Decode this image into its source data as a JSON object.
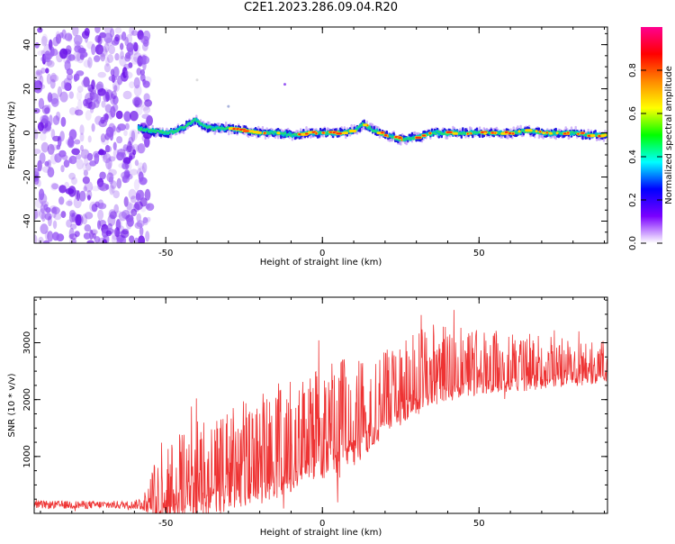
{
  "title": "C2E1.2023.286.09.04.R20",
  "colors": {
    "snr_line": "#ee3333",
    "noise": "#7a2ef0",
    "axis": "#000000"
  },
  "chart_data": [
    {
      "type": "heatmap",
      "title": "",
      "xlabel": "Height of straight line (km)",
      "ylabel": "Frequency (Hz)",
      "xlim": [
        -92,
        91
      ],
      "ylim": [
        -50,
        48
      ],
      "xticks": [
        -50,
        0,
        50
      ],
      "yticks": [
        -40,
        -20,
        0,
        20,
        40
      ],
      "grid": false,
      "colorbar": {
        "label": "Normalized spectral amplitude",
        "range": [
          0.0,
          1.0
        ],
        "ticks": [
          0.0,
          0.2,
          0.4,
          0.6,
          0.8
        ],
        "colormap": [
          "#ffffff",
          "#7a00ff",
          "#0000ff",
          "#00ffff",
          "#00ff00",
          "#ffff00",
          "#ff8800",
          "#ff0000",
          "#ff0090"
        ]
      },
      "noise_region": [
        -92,
        -55
      ],
      "signal_start": -59,
      "signal_trace": [
        {
          "x": -59,
          "y": 2
        },
        {
          "x": -55,
          "y": 1
        },
        {
          "x": -50,
          "y": 0
        },
        {
          "x": -47,
          "y": 1
        },
        {
          "x": -44,
          "y": 3
        },
        {
          "x": -41,
          "y": 6
        },
        {
          "x": -38,
          "y": 3
        },
        {
          "x": -35,
          "y": 2
        },
        {
          "x": -30,
          "y": 2
        },
        {
          "x": -25,
          "y": 1
        },
        {
          "x": -20,
          "y": 0
        },
        {
          "x": -15,
          "y": 0
        },
        {
          "x": -10,
          "y": -1
        },
        {
          "x": -5,
          "y": 0
        },
        {
          "x": 0,
          "y": 0
        },
        {
          "x": 5,
          "y": 0
        },
        {
          "x": 10,
          "y": 1
        },
        {
          "x": 13,
          "y": 4
        },
        {
          "x": 16,
          "y": 1
        },
        {
          "x": 20,
          "y": -1
        },
        {
          "x": 25,
          "y": -3
        },
        {
          "x": 30,
          "y": -2
        },
        {
          "x": 35,
          "y": 0
        },
        {
          "x": 40,
          "y": 0
        },
        {
          "x": 45,
          "y": 0
        },
        {
          "x": 50,
          "y": 0
        },
        {
          "x": 55,
          "y": 0
        },
        {
          "x": 60,
          "y": 0
        },
        {
          "x": 65,
          "y": 1
        },
        {
          "x": 70,
          "y": 0
        },
        {
          "x": 75,
          "y": 0
        },
        {
          "x": 80,
          "y": 0
        },
        {
          "x": 85,
          "y": -1
        },
        {
          "x": 91,
          "y": -1
        }
      ]
    },
    {
      "type": "line",
      "title": "",
      "xlabel": "Height of straight line (km)",
      "ylabel": "SNR (10 * v/v)",
      "xlim": [
        -92,
        91
      ],
      "ylim": [
        0,
        3800
      ],
      "xticks": [
        -50,
        0,
        50
      ],
      "yticks": [
        1000,
        2000,
        3000
      ],
      "grid": false,
      "series": [
        {
          "envelope": [
            {
              "x": -92,
              "mean": 150,
              "amp": 70
            },
            {
              "x": -60,
              "mean": 150,
              "amp": 70
            },
            {
              "x": -56,
              "mean": 200,
              "amp": 180
            },
            {
              "x": -52,
              "mean": 600,
              "amp": 750
            },
            {
              "x": -45,
              "mean": 700,
              "amp": 750
            },
            {
              "x": -35,
              "mean": 900,
              "amp": 900
            },
            {
              "x": -25,
              "mean": 1100,
              "amp": 900
            },
            {
              "x": -15,
              "mean": 1300,
              "amp": 1000
            },
            {
              "x": -5,
              "mean": 1550,
              "amp": 900
            },
            {
              "x": 5,
              "mean": 1700,
              "amp": 1000
            },
            {
              "x": 15,
              "mean": 1950,
              "amp": 800
            },
            {
              "x": 25,
              "mean": 2300,
              "amp": 700
            },
            {
              "x": 35,
              "mean": 2650,
              "amp": 700
            },
            {
              "x": 50,
              "mean": 2700,
              "amp": 550
            },
            {
              "x": 65,
              "mean": 2700,
              "amp": 500
            },
            {
              "x": 80,
              "mean": 2650,
              "amp": 400
            },
            {
              "x": 91,
              "mean": 2700,
              "amp": 350
            }
          ]
        }
      ]
    }
  ]
}
